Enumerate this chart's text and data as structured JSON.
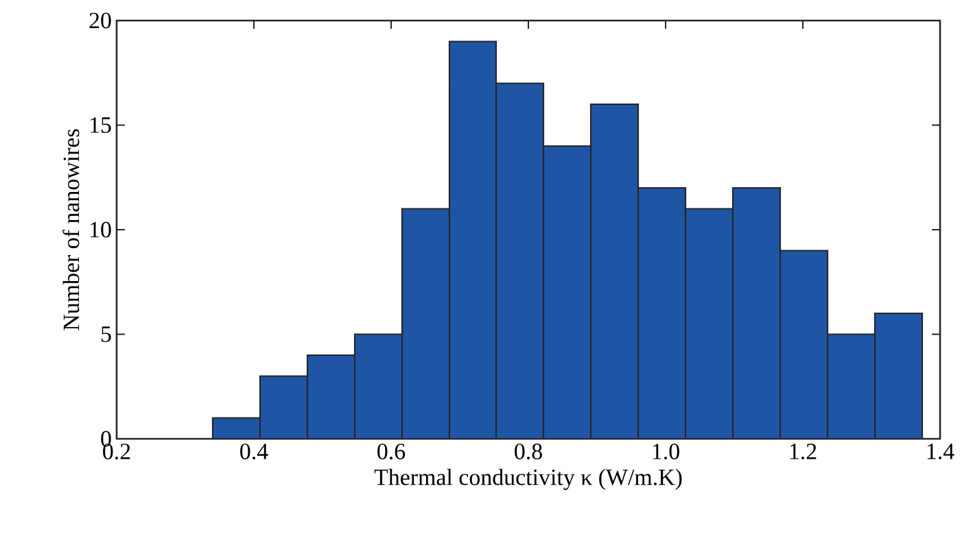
{
  "chart_data": {
    "type": "histogram",
    "xlabel": "Thermal conductivity κ (W/m.K)",
    "ylabel": "Number of nanowires",
    "bins": [
      0.34,
      0.409,
      0.478,
      0.547,
      0.616,
      0.685,
      0.753,
      0.822,
      0.891,
      0.96,
      1.029,
      1.098,
      1.167,
      1.236,
      1.305,
      1.374
    ],
    "values": [
      1,
      3,
      4,
      5,
      11,
      19,
      17,
      14,
      16,
      12,
      11,
      12,
      9,
      5,
      6
    ],
    "color": "#1f55a5",
    "xlim": [
      0.2,
      1.4
    ],
    "ylim": [
      0,
      20
    ],
    "xticks": [
      {
        "value": 0.2,
        "label": "0.2"
      },
      {
        "value": 0.4,
        "label": "0.4"
      },
      {
        "value": 0.6,
        "label": "0.6"
      },
      {
        "value": 0.8,
        "label": "0.8"
      },
      {
        "value": 1.0,
        "label": "1.0"
      },
      {
        "value": 1.2,
        "label": "1.2"
      },
      {
        "value": 1.4,
        "label": "1.4"
      }
    ],
    "yticks": [
      0,
      5,
      10,
      15,
      20
    ],
    "grid": false
  }
}
